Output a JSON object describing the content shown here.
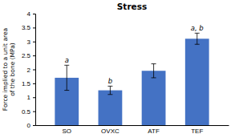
{
  "chart_data": {
    "type": "bar",
    "title": "Stress",
    "categories": [
      "SO",
      "OVXC",
      "ATF",
      "TEF"
    ],
    "values": [
      1.7,
      1.25,
      1.95,
      3.1
    ],
    "errors": [
      0.45,
      0.15,
      0.25,
      0.2
    ],
    "color": "#4472C4",
    "ylabel": "Force implied to a unit area\nof the bone (MPa)",
    "ylim": [
      0,
      4.0
    ],
    "yticks": [
      0,
      0.5,
      1,
      1.5,
      2,
      2.5,
      3,
      3.5,
      4
    ],
    "annotations": [
      "a",
      "b",
      null,
      "a, b"
    ]
  }
}
